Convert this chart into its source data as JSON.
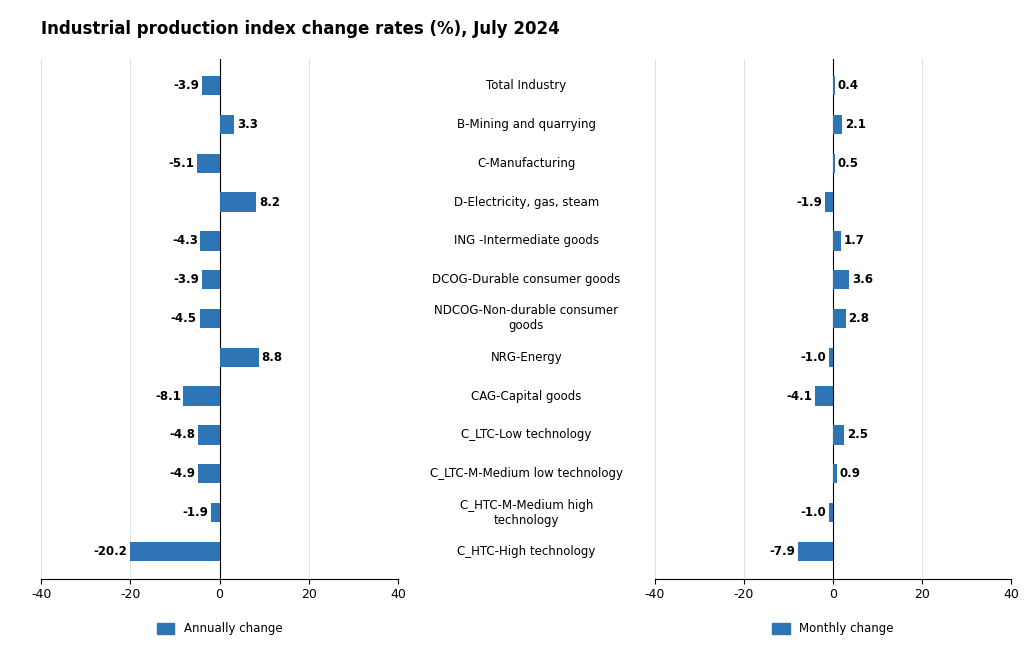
{
  "title": "Industrial production index change rates (%), July 2024",
  "categories": [
    "Total Industry",
    "B-Mining and quarrying",
    "C-Manufacturing",
    "D-Electricity, gas, steam",
    "ING -Intermediate goods",
    "DCOG-Durable consumer goods",
    "NDCOG-Non-durable consumer\ngoods",
    "NRG-Energy",
    "CAG-Capital goods",
    "C_LTC-Low technology",
    "C_LTC-M-Medium low technology",
    "C_HTC-M-Medium high\ntechnology",
    "C_HTC-High technology"
  ],
  "annual_values": [
    -3.9,
    3.3,
    -5.1,
    8.2,
    -4.3,
    -3.9,
    -4.5,
    8.8,
    -8.1,
    -4.8,
    -4.9,
    -1.9,
    -20.2
  ],
  "monthly_values": [
    0.4,
    2.1,
    0.5,
    -1.9,
    1.7,
    3.6,
    2.8,
    -1.0,
    -4.1,
    2.5,
    0.9,
    -1.0,
    -7.9
  ],
  "bar_color": "#2E75B6",
  "xlim": [
    -40,
    40
  ],
  "xticks": [
    -40,
    -20,
    0,
    20,
    40
  ],
  "title_fontsize": 12,
  "label_fontsize": 8.5,
  "tick_fontsize": 9,
  "bar_height": 0.5,
  "legend_annually": "Annually change",
  "legend_monthly": "Monthly change"
}
